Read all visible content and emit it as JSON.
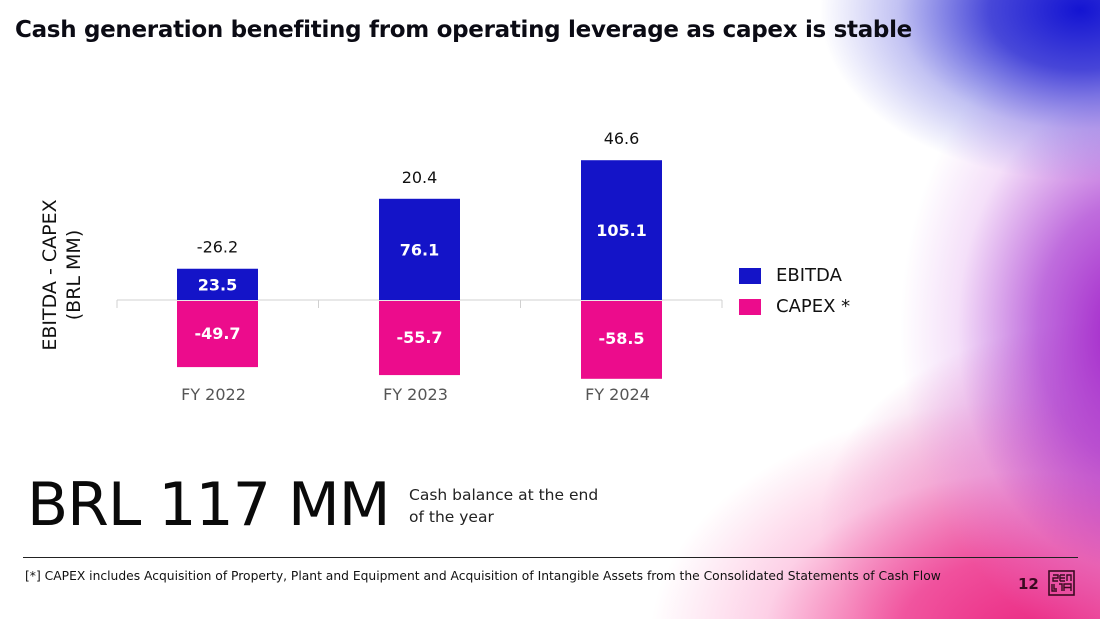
{
  "title": "Cash generation benefiting from operating leverage as capex is stable",
  "chart_data": {
    "type": "bar",
    "stacked": true,
    "title": "Cash generation benefiting from operating leverage as capex is stable",
    "xlabel": "",
    "ylabel": "EBITDA - CAPEX (BRL MM)",
    "ylabel_lines": [
      "EBITDA - CAPEX",
      "(BRL MM)"
    ],
    "categories": [
      "FY 2022",
      "FY 2023",
      "FY 2024"
    ],
    "series": [
      {
        "name": "EBITDA",
        "color": "#1414c8",
        "values": [
          23.5,
          76.1,
          105.1
        ],
        "labels": [
          "23.5",
          "76.1",
          "105.1"
        ]
      },
      {
        "name": "CAPEX *",
        "color": "#ec0c8c",
        "values": [
          -49.7,
          -55.7,
          -58.5
        ],
        "labels": [
          "-49.7",
          "-55.7",
          "-58.5"
        ]
      }
    ],
    "totals": {
      "name": "EBITDA - CAPEX",
      "values": [
        -26.2,
        20.4,
        46.6
      ],
      "labels": [
        "-26.2",
        "20.4",
        "46.6"
      ]
    },
    "ylim": [
      -60,
      110
    ],
    "grid": false,
    "legend": "right",
    "yaxis_visible": false
  },
  "highlight": {
    "value": "BRL 117 MM",
    "caption": "Cash balance at the end of the year"
  },
  "footnote": "[*] CAPEX includes Acquisition of Property, Plant and Equipment and Acquisition of Intangible Assets from the Consolidated Statements of Cash Flow",
  "page_number": "12",
  "logo_icon": "zenvia-logo-icon"
}
